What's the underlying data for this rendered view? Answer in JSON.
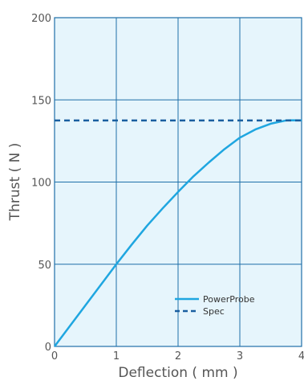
{
  "chart_data": {
    "type": "line",
    "xlabel": "Deflection ( mm )",
    "ylabel": "Thrust ( N )",
    "xlim": [
      0,
      4
    ],
    "ylim": [
      0,
      200
    ],
    "x_ticks": [
      "0",
      "1",
      "2",
      "3",
      "4"
    ],
    "y_ticks": [
      "0",
      "50",
      "100",
      "150",
      "200"
    ],
    "grid": true,
    "legend_position": "lower-right",
    "colors": {
      "plot_background": "#e6f5fc",
      "grid": "#1e6fa8",
      "axes": "#1e6fa8",
      "series": "#1fa6e0",
      "spec": "#1a5fa0"
    },
    "series": [
      {
        "name": "PowerProbe",
        "style": "solid",
        "x": [
          0,
          0.25,
          0.5,
          0.75,
          1.0,
          1.25,
          1.5,
          1.75,
          2.0,
          2.25,
          2.5,
          2.75,
          3.0,
          3.25,
          3.5,
          3.75,
          3.85,
          4.0
        ],
        "y": [
          0,
          12.5,
          25,
          37.5,
          50,
          62,
          73.5,
          84,
          94,
          103.5,
          112,
          120,
          127,
          132,
          135.5,
          137.5,
          137.6,
          137.5
        ]
      },
      {
        "name": "Spec",
        "style": "dashed",
        "x": [
          0,
          4
        ],
        "y": [
          137.5,
          137.5
        ]
      }
    ]
  }
}
